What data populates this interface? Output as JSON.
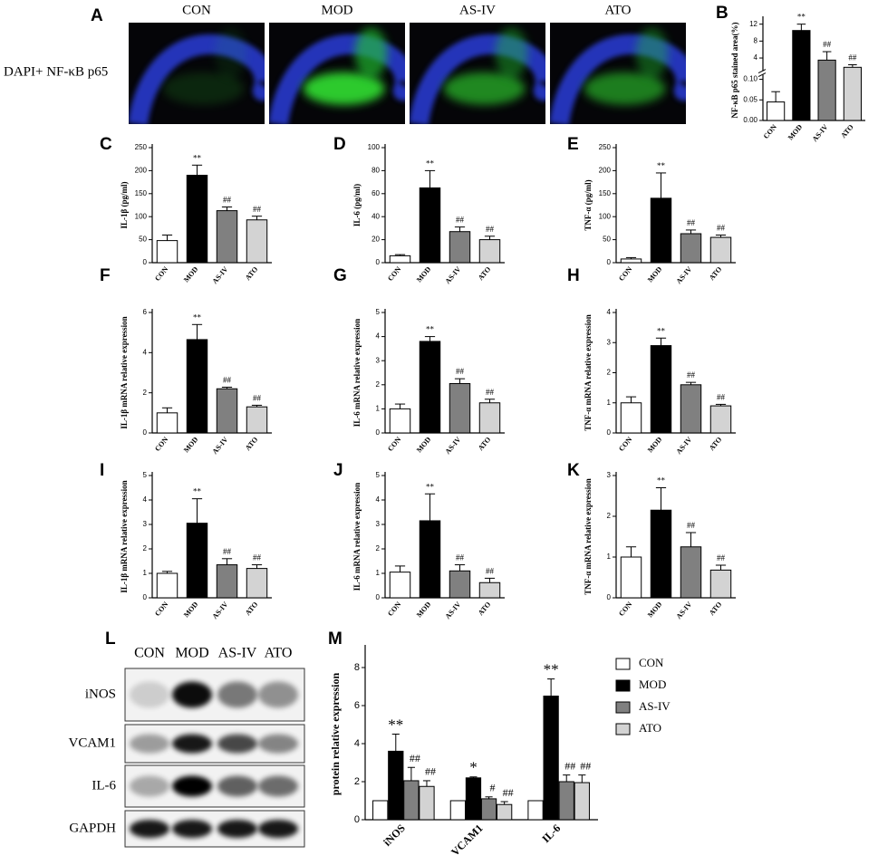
{
  "panel_a": {
    "letter": "A",
    "columns": [
      "CON",
      "MOD",
      "AS-IV",
      "ATO"
    ],
    "row_label": "DAPI+ NF-κB p65"
  },
  "panel_l": {
    "letter": "L",
    "columns": [
      "CON",
      "MOD",
      "AS-IV",
      "ATO"
    ],
    "rows": [
      "iNOS",
      "VCAM1",
      "IL-6",
      "GAPDH"
    ]
  },
  "chart_data": [
    {
      "type": "bar",
      "letter": "B",
      "ylabel": "NF-κB p65 stained area(%)",
      "categories": [
        "CON",
        "MOD",
        "AS-IV",
        "ATO"
      ],
      "values": [
        0.045,
        10.5,
        3.5,
        1.8
      ],
      "errors": [
        0.025,
        1.5,
        2,
        0.6
      ],
      "annotations": [
        null,
        "**",
        "##",
        "##"
      ],
      "colors": [
        "#ffffff",
        "#000000",
        "#808080",
        "#d3d3d3"
      ],
      "ylim": [
        0,
        13
      ],
      "ybreak": [
        0.11,
        1
      ],
      "yticks": [
        {
          "value": 0,
          "label": "0.00"
        },
        {
          "value": 0.05,
          "label": "0.05"
        },
        {
          "value": 0.1,
          "label": "0.10"
        },
        4,
        8,
        12
      ]
    },
    {
      "type": "bar",
      "letter": "C",
      "ylabel": "IL-1β (pg/ml)",
      "categories": [
        "CON",
        "MOD",
        "AS-IV",
        "ATO"
      ],
      "values": [
        48,
        190,
        113,
        93
      ],
      "errors": [
        12,
        22,
        8,
        8
      ],
      "annotations": [
        null,
        "**",
        "##",
        "##"
      ],
      "colors": [
        "#ffffff",
        "#000000",
        "#808080",
        "#d3d3d3"
      ],
      "ylim": [
        0,
        250
      ],
      "yticks": [
        0,
        50,
        100,
        150,
        200,
        250
      ]
    },
    {
      "type": "bar",
      "letter": "D",
      "ylabel": "IL-6 (pg/ml)",
      "categories": [
        "CON",
        "MOD",
        "AS-IV",
        "ATO"
      ],
      "values": [
        6,
        65,
        27,
        20
      ],
      "errors": [
        1,
        15,
        4,
        3
      ],
      "annotations": [
        null,
        "**",
        "##",
        "##"
      ],
      "colors": [
        "#ffffff",
        "#000000",
        "#808080",
        "#d3d3d3"
      ],
      "ylim": [
        0,
        100
      ],
      "yticks": [
        0,
        20,
        40,
        60,
        80,
        100
      ]
    },
    {
      "type": "bar",
      "letter": "E",
      "ylabel": "TNF-α (pg/ml)",
      "categories": [
        "CON",
        "MOD",
        "AS-IV",
        "ATO"
      ],
      "values": [
        8,
        140,
        63,
        55
      ],
      "errors": [
        3,
        55,
        8,
        5
      ],
      "annotations": [
        null,
        "**",
        "##",
        "##"
      ],
      "colors": [
        "#ffffff",
        "#000000",
        "#808080",
        "#d3d3d3"
      ],
      "ylim": [
        0,
        250
      ],
      "yticks": [
        0,
        50,
        100,
        150,
        200,
        250
      ]
    },
    {
      "type": "bar",
      "letter": "F",
      "ylabel": "IL-1β mRNA relative expression",
      "categories": [
        "CON",
        "MOD",
        "AS-IV",
        "ATO"
      ],
      "values": [
        1.0,
        4.65,
        2.2,
        1.3
      ],
      "errors": [
        0.25,
        0.75,
        0.08,
        0.08
      ],
      "annotations": [
        null,
        "**",
        "##",
        "##"
      ],
      "colors": [
        "#ffffff",
        "#000000",
        "#808080",
        "#d3d3d3"
      ],
      "ylim": [
        0,
        6
      ],
      "yticks": [
        0,
        2,
        4,
        6
      ]
    },
    {
      "type": "bar",
      "letter": "G",
      "ylabel": "IL-6 mRNA relative expression",
      "categories": [
        "CON",
        "MOD",
        "AS-IV",
        "ATO"
      ],
      "values": [
        1.0,
        3.8,
        2.05,
        1.25
      ],
      "errors": [
        0.2,
        0.2,
        0.2,
        0.15
      ],
      "annotations": [
        null,
        "**",
        "##",
        "##"
      ],
      "colors": [
        "#ffffff",
        "#000000",
        "#808080",
        "#d3d3d3"
      ],
      "ylim": [
        0,
        5
      ],
      "yticks": [
        0,
        1,
        2,
        3,
        4,
        5
      ]
    },
    {
      "type": "bar",
      "letter": "H",
      "ylabel": "TNF-α mRNA relative expression",
      "categories": [
        "CON",
        "MOD",
        "AS-IV",
        "ATO"
      ],
      "values": [
        1.0,
        2.9,
        1.6,
        0.9
      ],
      "errors": [
        0.2,
        0.25,
        0.08,
        0.05
      ],
      "annotations": [
        null,
        "**",
        "##",
        "##"
      ],
      "colors": [
        "#ffffff",
        "#000000",
        "#808080",
        "#d3d3d3"
      ],
      "ylim": [
        0,
        4
      ],
      "yticks": [
        0,
        1,
        2,
        3,
        4
      ]
    },
    {
      "type": "bar",
      "letter": "I",
      "ylabel": "IL-1β mRNA relative expression",
      "categories": [
        "CON",
        "MOD",
        "AS-IV",
        "ATO"
      ],
      "values": [
        1.0,
        3.05,
        1.35,
        1.2
      ],
      "errors": [
        0.08,
        1.0,
        0.25,
        0.15
      ],
      "annotations": [
        null,
        "**",
        "##",
        "##"
      ],
      "colors": [
        "#ffffff",
        "#000000",
        "#808080",
        "#d3d3d3"
      ],
      "ylim": [
        0,
        5
      ],
      "yticks": [
        0,
        1,
        2,
        3,
        4,
        5
      ]
    },
    {
      "type": "bar",
      "letter": "J",
      "ylabel": "IL-6 mRNA relative expression",
      "categories": [
        "CON",
        "MOD",
        "AS-IV",
        "ATO"
      ],
      "values": [
        1.05,
        3.15,
        1.1,
        0.62
      ],
      "errors": [
        0.25,
        1.1,
        0.25,
        0.18
      ],
      "annotations": [
        null,
        "**",
        "##",
        "##"
      ],
      "colors": [
        "#ffffff",
        "#000000",
        "#808080",
        "#d3d3d3"
      ],
      "ylim": [
        0,
        5
      ],
      "yticks": [
        0,
        1,
        2,
        3,
        4,
        5
      ]
    },
    {
      "type": "bar",
      "letter": "K",
      "ylabel": "TNF-α mRNA relative expression",
      "categories": [
        "CON",
        "MOD",
        "AS-IV",
        "ATO"
      ],
      "values": [
        1.0,
        2.15,
        1.25,
        0.68
      ],
      "errors": [
        0.25,
        0.55,
        0.35,
        0.12
      ],
      "annotations": [
        null,
        "**",
        "##",
        "##"
      ],
      "colors": [
        "#ffffff",
        "#000000",
        "#808080",
        "#d3d3d3"
      ],
      "ylim": [
        0,
        3
      ],
      "yticks": [
        0,
        1,
        2,
        3
      ]
    },
    {
      "type": "bar",
      "letter": "M",
      "ylabel": "protein relative expression",
      "categories": [
        "iNOS",
        "VCAM1",
        "IL-6"
      ],
      "ylim": [
        0,
        9
      ],
      "yticks": [
        0,
        2,
        4,
        6,
        8
      ],
      "series": [
        {
          "name": "CON",
          "color": "#ffffff",
          "values": [
            1,
            1,
            1
          ]
        },
        {
          "name": "MOD",
          "color": "#000000",
          "values": [
            3.6,
            2.2,
            6.5
          ],
          "errors": [
            0.9,
            0.05,
            0.9
          ],
          "annotations": [
            "**",
            "*",
            "**"
          ]
        },
        {
          "name": "AS-IV",
          "color": "#808080",
          "values": [
            2.05,
            1.1,
            2.0
          ],
          "errors": [
            0.7,
            0.1,
            0.35
          ],
          "annotations": [
            "##",
            "#",
            "##"
          ]
        },
        {
          "name": "ATO",
          "color": "#d3d3d3",
          "values": [
            1.75,
            0.8,
            1.95
          ],
          "errors": [
            0.3,
            0.15,
            0.4
          ],
          "annotations": [
            "##",
            "##",
            "##"
          ]
        }
      ]
    }
  ]
}
